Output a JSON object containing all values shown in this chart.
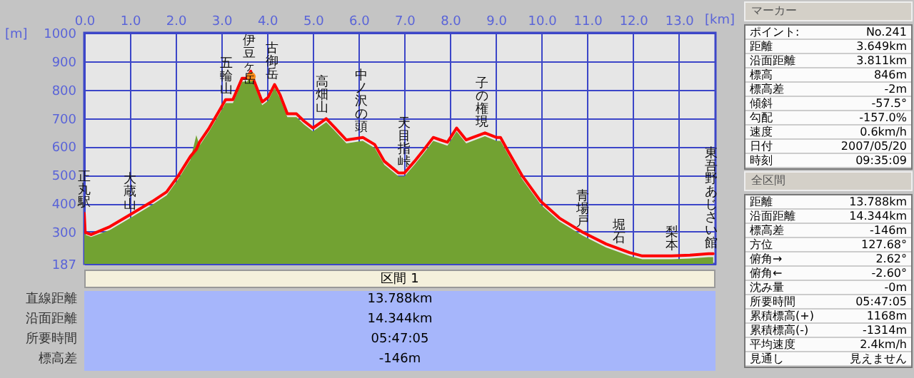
{
  "chart_data": [
    {
      "type": "area",
      "xlabel": "[km]",
      "ylabel": "[m]",
      "xlim": [
        0,
        13.8
      ],
      "ylim": [
        187,
        1000
      ],
      "xticks": [
        {
          "value": 0,
          "label": "0.0"
        },
        {
          "value": 1,
          "label": "1.0"
        },
        {
          "value": 2,
          "label": "2.0"
        },
        {
          "value": 3,
          "label": "3.0"
        },
        {
          "value": 4,
          "label": "4.0"
        },
        {
          "value": 5,
          "label": "5.0"
        },
        {
          "value": 6,
          "label": "6.0"
        },
        {
          "value": 7,
          "label": "7.0"
        },
        {
          "value": 8,
          "label": "8.0"
        },
        {
          "value": 9,
          "label": "9.0"
        },
        {
          "value": 10,
          "label": "10.0"
        },
        {
          "value": 11,
          "label": "11.0"
        },
        {
          "value": 12,
          "label": "12.0"
        },
        {
          "value": 13,
          "label": "13.0"
        }
      ],
      "yticks": [
        187,
        300,
        400,
        500,
        600,
        700,
        800,
        900,
        1000
      ],
      "grid": true,
      "x": [
        0,
        0.02,
        0.15,
        0.56,
        0.97,
        1.49,
        1.8,
        2.06,
        2.32,
        2.45,
        2.52,
        2.73,
        2.94,
        3.09,
        3.25,
        3.45,
        3.56,
        3.64,
        3.71,
        3.89,
        4.02,
        4.16,
        4.28,
        4.44,
        4.64,
        4.8,
        5.0,
        5.29,
        5.47,
        5.73,
        6.09,
        6.35,
        6.56,
        6.87,
        7.0,
        7.22,
        7.43,
        7.63,
        7.79,
        7.94,
        8.14,
        8.35,
        8.76,
        9.01,
        9.1,
        9.27,
        9.57,
        9.98,
        10.39,
        10.9,
        11.41,
        11.92,
        12.2,
        12.84,
        13.24,
        13.65,
        13.75
      ],
      "series": [
        {
          "type": "area",
          "color": "#72a232",
          "values": [
            300,
            290,
            282,
            306,
            345,
            395,
            428,
            486,
            553,
            640,
            603,
            653,
            711,
            753,
            753,
            828,
            828,
            850,
            820,
            745,
            761,
            806,
            770,
            703,
            703,
            678,
            653,
            686,
            656,
            611,
            620,
            595,
            536,
            495,
            495,
            536,
            578,
            620,
            611,
            603,
            653,
            611,
            636,
            620,
            620,
            570,
            486,
            395,
            336,
            286,
            245,
            215,
            203,
            203,
            206,
            211,
            211
          ]
        },
        {
          "type": "line",
          "color": "#ff0000",
          "values": [
            365,
            298,
            290,
            318,
            357,
            407,
            440,
            498,
            565,
            590,
            615,
            665,
            723,
            765,
            765,
            840,
            840,
            865,
            832,
            757,
            773,
            818,
            782,
            715,
            715,
            690,
            665,
            698,
            668,
            623,
            632,
            607,
            548,
            507,
            507,
            548,
            590,
            632,
            623,
            615,
            665,
            623,
            648,
            632,
            632,
            582,
            498,
            407,
            348,
            298,
            257,
            227,
            215,
            215,
            218,
            223,
            223
          ]
        },
        {
          "type": "scatter",
          "color": "#ff8c1a",
          "x": [
            3.649
          ],
          "values": [
            846
          ]
        }
      ],
      "annotations": [
        {
          "text": "正丸駅",
          "x": 0,
          "y": 365
        },
        {
          "text": "大蔵山",
          "x": 1.0,
          "y": 357
        },
        {
          "text": "五輪山",
          "x": 3.1,
          "y": 765
        },
        {
          "text": "伊豆ヶ岳",
          "x": 3.6,
          "y": 846
        },
        {
          "text": "古御岳",
          "x": 4.1,
          "y": 818
        },
        {
          "text": "高畑山",
          "x": 5.2,
          "y": 698
        },
        {
          "text": "中ノ沢の頭",
          "x": 6.05,
          "y": 632
        },
        {
          "text": "天目指峠",
          "x": 7.0,
          "y": 507
        },
        {
          "text": "子の権現",
          "x": 8.7,
          "y": 648
        },
        {
          "text": "青場戸",
          "x": 10.9,
          "y": 298
        },
        {
          "text": "堀石",
          "x": 11.7,
          "y": 240
        },
        {
          "text": "梨本",
          "x": 12.85,
          "y": 215
        },
        {
          "text": "東吾野あじさい館",
          "x": 13.7,
          "y": 223
        }
      ]
    },
    {
      "type": "other",
      "title": "マーカー",
      "annotations": [
        "ポイント:",
        "No.241",
        "距離",
        "3.649km",
        "沿面距離",
        "3.811km",
        "標高",
        "846m",
        "標高差",
        "-2m",
        "傾斜",
        "-57.5°",
        "勾配",
        "-157.0%",
        "速度",
        "0.6km/h",
        "日付",
        "2007/05/20",
        "時刻",
        "09:35:09"
      ]
    },
    {
      "type": "other",
      "title": "全区間",
      "annotations": [
        "距離",
        "13.788km",
        "沿面距離",
        "14.344km",
        "標高差",
        "-146m",
        "方位",
        "127.68°",
        "俯角→",
        "2.62°",
        "俯角←",
        "-2.60°",
        "沈み量",
        "-0m",
        "所要時間",
        "05:47:05",
        "累積標高(+)",
        "1168m",
        "累積標高(-)",
        "-1314m",
        "平均速度",
        "2.4km/h",
        "見通し",
        "見えません"
      ]
    },
    {
      "type": "other",
      "title": "区間 1",
      "annotations": [
        "直線距離",
        "13.788km",
        "沿面距離",
        "14.344km",
        "所要時間",
        "05:47:05",
        "標高差",
        "-146m"
      ]
    }
  ]
}
